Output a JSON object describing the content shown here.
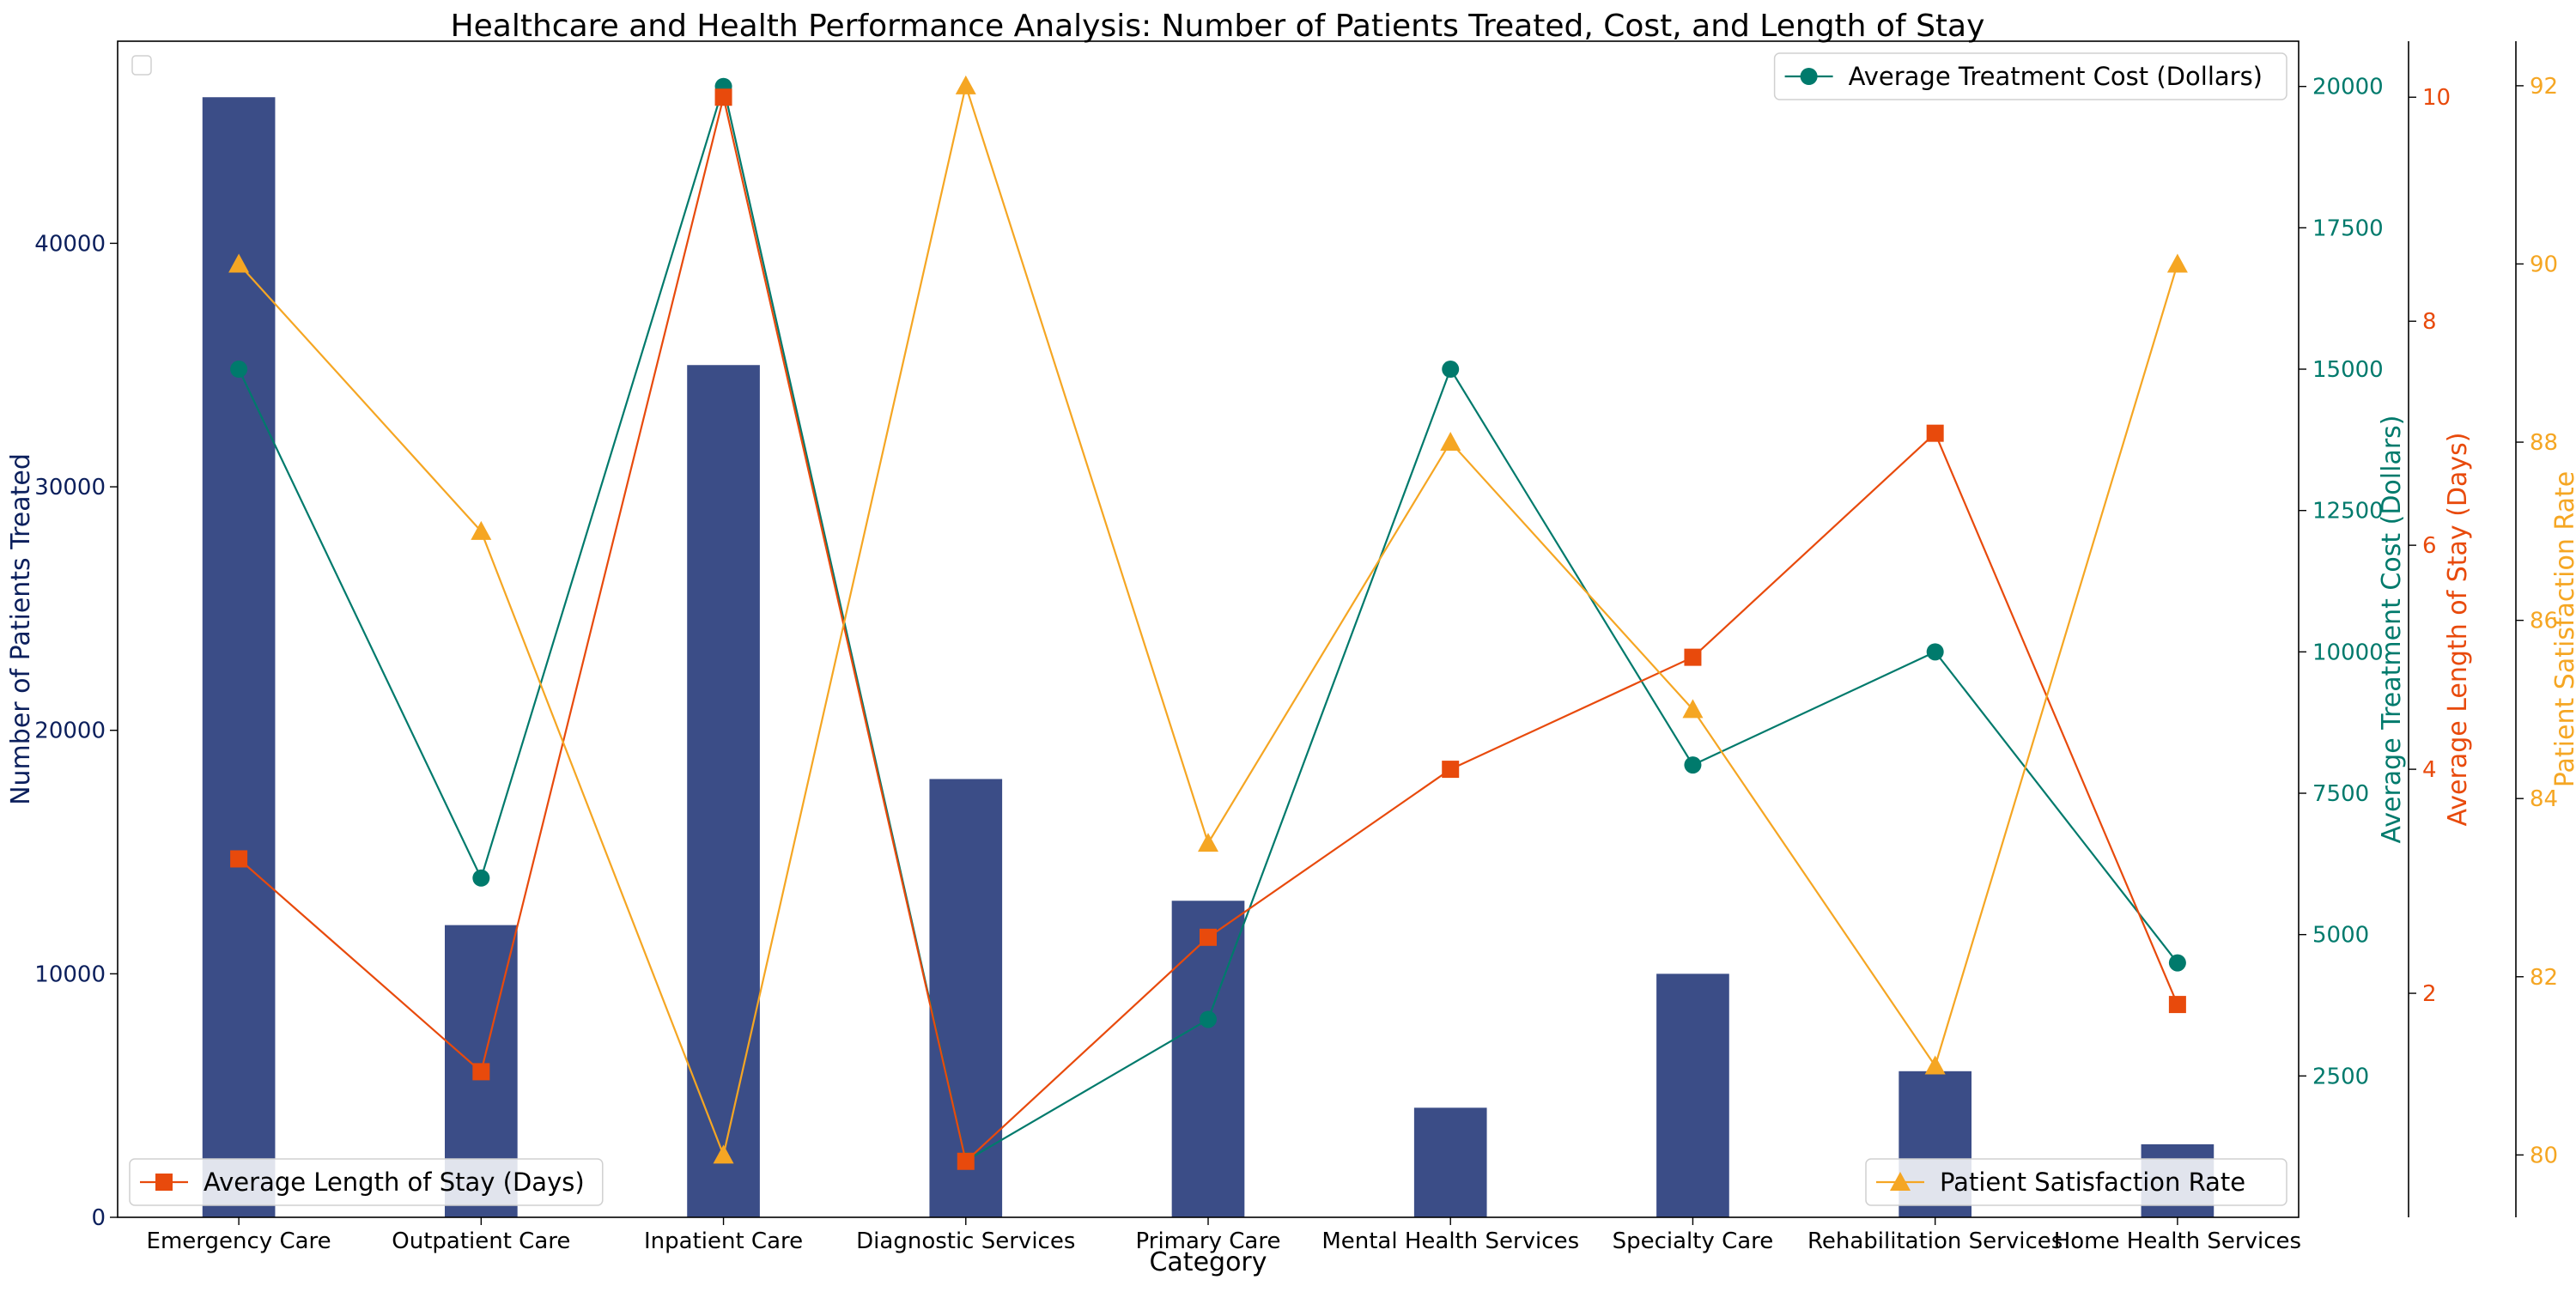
{
  "chart_data": {
    "type": "bar",
    "title": "Healthcare and Health Performance Analysis: Number of Patients Treated, Cost, and Length of Stay",
    "xlabel": "Category",
    "categories": [
      "Emergency Care",
      "Outpatient Care",
      "Inpatient Care",
      "Diagnostic Services",
      "Primary Care",
      "Mental Health Services",
      "Specialty Care",
      "Rehabilitation Services",
      "Home Health Services"
    ],
    "grid": false,
    "axes": {
      "y1": {
        "label": "Number of Patients Treated",
        "ylim": [
          0,
          48300
        ],
        "ticks": [
          0,
          10000,
          20000,
          30000,
          40000
        ],
        "color": "#0b1f5c"
      },
      "y2": {
        "label": "Average Treatment Cost (Dollars)",
        "ylim": [
          0,
          20800
        ],
        "ticks": [
          2500,
          5000,
          7500,
          10000,
          12500,
          15000,
          17500,
          20000
        ],
        "color": "#007a6c"
      },
      "y3": {
        "label": "Average Length of Stay (Days)",
        "ylim": [
          0,
          10.5
        ],
        "ticks": [
          2,
          4,
          6,
          8,
          10
        ],
        "color": "#e84a0c"
      },
      "y4": {
        "label": "Patient Satisfaction Rate",
        "ylim": [
          79.3,
          92.5
        ],
        "ticks": [
          80,
          82,
          84,
          86,
          88,
          90,
          92
        ],
        "color": "#f5a623"
      }
    },
    "series": [
      {
        "name": "Number of Patients Treated",
        "type": "bar",
        "axis": "y1",
        "color": "#3b4d87",
        "values": [
          46000,
          12000,
          35000,
          18000,
          13000,
          4500,
          10000,
          6000,
          3000
        ]
      },
      {
        "name": "Average Treatment Cost (Dollars)",
        "type": "line",
        "axis": "y2",
        "marker": "circle",
        "color": "#007a6c",
        "values": [
          15000,
          6000,
          20000,
          1000,
          3500,
          15000,
          8000,
          10000,
          4500
        ]
      },
      {
        "name": "Average Length of Stay (Days)",
        "type": "line",
        "axis": "y3",
        "marker": "square",
        "color": "#e84a0c",
        "values": [
          3.2,
          1.3,
          10,
          0.5,
          2.5,
          4,
          5,
          7,
          1.9
        ]
      },
      {
        "name": "Patient Satisfaction Rate",
        "type": "line",
        "axis": "y4",
        "marker": "triangle",
        "color": "#f5a623",
        "values": [
          90,
          87,
          80,
          92,
          83.5,
          88,
          85,
          81,
          90
        ]
      }
    ],
    "legends": [
      {
        "position": "top-right",
        "entry": "Average Treatment Cost (Dollars)"
      },
      {
        "position": "bottom-left",
        "entry": "Average Length of Stay (Days)"
      },
      {
        "position": "bottom-right",
        "entry": "Patient Satisfaction Rate"
      },
      {
        "position": "top-left",
        "entry": ""
      }
    ]
  }
}
